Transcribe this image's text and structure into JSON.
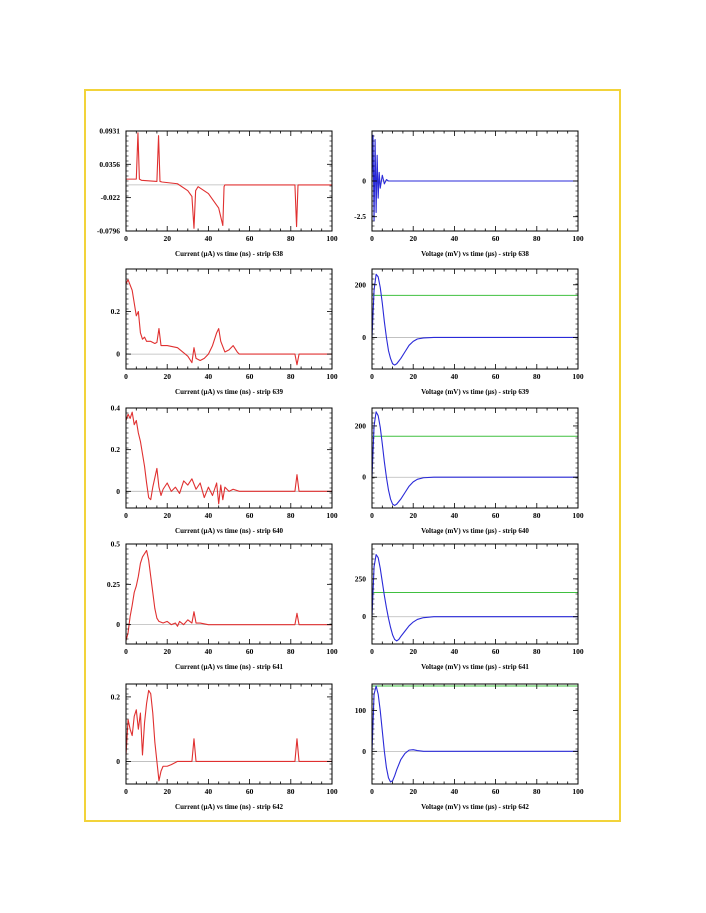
{
  "colors": {
    "frame": "#f2d33a",
    "current": "#e03030",
    "voltage": "#2a2ad8",
    "threshold": "#40c040",
    "baseline": "#b8b8b8"
  },
  "chart_data": [
    {
      "type": "line",
      "xlabel": "Current (µA) vs time (ns) - strip 638",
      "xlim": [
        0,
        100
      ],
      "xticks": [
        0,
        20,
        40,
        60,
        80,
        100
      ],
      "ylim": [
        -0.0796,
        0.0931
      ],
      "yticks": [
        0.0931,
        0.0356,
        -0.022,
        -0.0796
      ],
      "baseline": 0,
      "series": [
        {
          "color": "#e03030",
          "x": [
            0,
            5,
            5.8,
            6.5,
            7.5,
            15,
            15.8,
            16.5,
            17.5,
            25,
            30,
            32,
            33,
            33.8,
            35,
            40,
            45,
            47,
            47.6,
            48,
            60,
            80,
            82,
            82.8,
            83.5,
            84.5,
            100
          ],
          "y": [
            0.01,
            0.01,
            0.09,
            0.01,
            0.008,
            0.006,
            0.085,
            0.006,
            0.005,
            0.002,
            -0.01,
            -0.02,
            -0.075,
            -0.01,
            -0.003,
            -0.015,
            -0.04,
            -0.07,
            -0.003,
            0,
            0,
            0,
            0,
            -0.072,
            0,
            0,
            0
          ]
        }
      ]
    },
    {
      "type": "line",
      "xlabel": "Voltage (mV) vs time (µs) - strip 638",
      "xlim": [
        0,
        100
      ],
      "xticks": [
        0,
        20,
        40,
        60,
        80,
        100
      ],
      "ylim": [
        -3.5,
        3.5
      ],
      "yticks": [
        0,
        -2.5
      ],
      "baseline": 0,
      "series": [
        {
          "color": "#2a2ad8",
          "x": [
            0,
            0.5,
            1,
            1.5,
            2,
            2.5,
            3,
            3.5,
            4,
            5,
            6,
            7,
            8,
            10,
            12,
            100
          ],
          "y": [
            0,
            3.2,
            -2.8,
            2.9,
            -2.2,
            1.8,
            -1.2,
            0.6,
            -0.5,
            0.4,
            -0.2,
            0.1,
            0,
            0,
            0,
            0
          ]
        }
      ]
    },
    {
      "type": "line",
      "xlabel": "Current (µA) vs time (ns) - strip 639",
      "xlim": [
        0,
        100
      ],
      "xticks": [
        0,
        20,
        40,
        60,
        80,
        100
      ],
      "ylim": [
        -0.07,
        0.4
      ],
      "yticks": [
        0.2,
        0
      ],
      "baseline": 0,
      "series": [
        {
          "color": "#e03030",
          "x": [
            0,
            1,
            3,
            4,
            5,
            6,
            7,
            8,
            9,
            10,
            12,
            14,
            15,
            16,
            17,
            20,
            25,
            30,
            32,
            33,
            34,
            36,
            38,
            40,
            42,
            44,
            45,
            46,
            48,
            50,
            52,
            54,
            55,
            60,
            80,
            82,
            83,
            84,
            100
          ],
          "y": [
            0.33,
            0.35,
            0.3,
            0.24,
            0.18,
            0.2,
            0.1,
            0.07,
            0.08,
            0.06,
            0.06,
            0.05,
            0.055,
            0.12,
            0.04,
            0.04,
            0.03,
            -0.01,
            -0.04,
            0.03,
            -0.02,
            -0.03,
            -0.02,
            0,
            0.04,
            0.1,
            0.12,
            0.06,
            0.01,
            0.02,
            0.04,
            0.01,
            0,
            0,
            0,
            0,
            -0.05,
            0,
            0
          ]
        }
      ]
    },
    {
      "type": "line",
      "xlabel": "Voltage (mV) vs time (µs) - strip 639",
      "xlim": [
        0,
        100
      ],
      "xticks": [
        0,
        20,
        40,
        60,
        80,
        100
      ],
      "ylim": [
        -120,
        260
      ],
      "yticks": [
        200,
        0
      ],
      "baseline": 0,
      "threshold": 160,
      "series": [
        {
          "color": "#2a2ad8",
          "x": [
            0,
            1,
            2,
            3,
            4,
            5,
            6,
            7,
            8,
            9,
            10,
            11,
            12,
            14,
            16,
            18,
            20,
            22,
            25,
            30,
            40,
            60,
            80,
            100
          ],
          "y": [
            0,
            180,
            240,
            230,
            190,
            130,
            60,
            0,
            -50,
            -80,
            -100,
            -105,
            -100,
            -80,
            -55,
            -30,
            -15,
            -6,
            -2,
            0,
            0,
            0,
            0,
            0
          ]
        }
      ]
    },
    {
      "type": "line",
      "xlabel": "Current (µA) vs time (ns) - strip 640",
      "xlim": [
        0,
        100
      ],
      "xticks": [
        0,
        20,
        40,
        60,
        80,
        100
      ],
      "ylim": [
        -0.08,
        0.4
      ],
      "yticks": [
        0.4,
        0.2,
        0
      ],
      "baseline": 0,
      "series": [
        {
          "color": "#e03030",
          "x": [
            0,
            1,
            2,
            3,
            4,
            5,
            6,
            7,
            8,
            9,
            10,
            11,
            12,
            13,
            15,
            16,
            17,
            18,
            20,
            22,
            24,
            26,
            28,
            30,
            32,
            34,
            36,
            38,
            40,
            42,
            44,
            45,
            46,
            47,
            48,
            50,
            52,
            55,
            60,
            80,
            82,
            83,
            84,
            100
          ],
          "y": [
            0.34,
            0.37,
            0.35,
            0.38,
            0.32,
            0.34,
            0.28,
            0.24,
            0.18,
            0.12,
            0.04,
            -0.03,
            -0.04,
            0.02,
            0.11,
            0.02,
            -0.02,
            0.01,
            0.04,
            0,
            0.02,
            -0.01,
            0.05,
            0.03,
            0.06,
            0.01,
            0.04,
            -0.03,
            0.02,
            -0.02,
            0.04,
            -0.06,
            0.03,
            -0.04,
            0.02,
            0,
            0.01,
            0,
            0,
            0,
            0,
            0.08,
            0,
            0
          ]
        }
      ]
    },
    {
      "type": "line",
      "xlabel": "Voltage (mV) vs time (µs) - strip 640",
      "xlim": [
        0,
        100
      ],
      "xticks": [
        0,
        20,
        40,
        60,
        80,
        100
      ],
      "ylim": [
        -120,
        270
      ],
      "yticks": [
        200,
        0
      ],
      "baseline": 0,
      "threshold": 160,
      "series": [
        {
          "color": "#2a2ad8",
          "x": [
            0,
            1,
            2,
            3,
            4,
            5,
            6,
            7,
            8,
            9,
            10,
            11,
            12,
            14,
            16,
            18,
            20,
            22,
            25,
            30,
            40,
            60,
            80,
            100
          ],
          "y": [
            0,
            200,
            255,
            240,
            195,
            130,
            60,
            0,
            -50,
            -85,
            -105,
            -110,
            -105,
            -85,
            -60,
            -35,
            -18,
            -8,
            -2,
            0,
            0,
            0,
            0,
            0
          ]
        }
      ]
    },
    {
      "type": "line",
      "xlabel": "Current (µA) vs time (ns) - strip 641",
      "xlim": [
        0,
        100
      ],
      "xticks": [
        0,
        20,
        40,
        60,
        80,
        100
      ],
      "ylim": [
        -0.12,
        0.5
      ],
      "yticks": [
        0.5,
        0.25,
        0
      ],
      "baseline": 0,
      "series": [
        {
          "color": "#e03030",
          "x": [
            0,
            1,
            2,
            3,
            4,
            5,
            6,
            7,
            8,
            9,
            10,
            11,
            12,
            13,
            14,
            15,
            16,
            18,
            20,
            22,
            24,
            25,
            26,
            28,
            30,
            32,
            33,
            34,
            36,
            40,
            60,
            80,
            82,
            83,
            84,
            100
          ],
          "y": [
            -0.1,
            -0.05,
            0.05,
            0.12,
            0.2,
            0.24,
            0.3,
            0.38,
            0.42,
            0.44,
            0.46,
            0.4,
            0.3,
            0.2,
            0.1,
            0.04,
            0.02,
            0.01,
            0.02,
            0,
            0.01,
            -0.01,
            0.02,
            0,
            0.03,
            0.01,
            0.08,
            0.01,
            0.01,
            0,
            0,
            0,
            0,
            0.07,
            0,
            0
          ]
        }
      ]
    },
    {
      "type": "line",
      "xlabel": "Voltage (mV) vs time (µs) - strip 641",
      "xlim": [
        0,
        100
      ],
      "xticks": [
        0,
        20,
        40,
        60,
        80,
        100
      ],
      "ylim": [
        -180,
        480
      ],
      "yticks": [
        250,
        0
      ],
      "baseline": 0,
      "threshold": 160,
      "series": [
        {
          "color": "#2a2ad8",
          "x": [
            0,
            1,
            2,
            3,
            4,
            5,
            6,
            7,
            8,
            9,
            10,
            11,
            12,
            13,
            14,
            16,
            18,
            20,
            22,
            25,
            30,
            40,
            60,
            80,
            100
          ],
          "y": [
            0,
            330,
            410,
            390,
            320,
            230,
            140,
            60,
            -10,
            -70,
            -120,
            -150,
            -160,
            -150,
            -130,
            -95,
            -60,
            -35,
            -18,
            -6,
            0,
            0,
            0,
            0,
            0
          ]
        }
      ]
    },
    {
      "type": "line",
      "xlabel": "Current (µA) vs time (ns) - strip 642",
      "xlim": [
        0,
        100
      ],
      "xticks": [
        0,
        20,
        40,
        60,
        80,
        100
      ],
      "ylim": [
        -0.07,
        0.24
      ],
      "yticks": [
        0.2,
        0
      ],
      "baseline": 0,
      "series": [
        {
          "color": "#e03030",
          "x": [
            0,
            1,
            2,
            3,
            4,
            5,
            6,
            7,
            8,
            9,
            10,
            11,
            12,
            13,
            14,
            15,
            16,
            17,
            18,
            20,
            22,
            25,
            30,
            32,
            33,
            34,
            36,
            40,
            60,
            80,
            82,
            83,
            84,
            100
          ],
          "y": [
            0.02,
            0.13,
            0.1,
            0.08,
            0.14,
            0.16,
            0.1,
            0.15,
            0.02,
            0.12,
            0.18,
            0.22,
            0.21,
            0.15,
            0.06,
            0,
            -0.06,
            -0.03,
            -0.015,
            -0.015,
            -0.01,
            0,
            0,
            0,
            0.07,
            0,
            0,
            0,
            0,
            0,
            0,
            0.07,
            0,
            0
          ]
        }
      ]
    },
    {
      "type": "line",
      "xlabel": "Voltage (mV) vs time (µs) - strip 642",
      "xlim": [
        0,
        100
      ],
      "xticks": [
        0,
        20,
        40,
        60,
        80,
        100
      ],
      "ylim": [
        -80,
        165
      ],
      "yticks": [
        100,
        0
      ],
      "baseline": 0,
      "threshold": 160,
      "series": [
        {
          "color": "#2a2ad8",
          "x": [
            0,
            1,
            2,
            3,
            4,
            5,
            6,
            7,
            8,
            9,
            10,
            11,
            12,
            14,
            16,
            18,
            20,
            22,
            25,
            30,
            40,
            60,
            80,
            100
          ],
          "y": [
            0,
            140,
            160,
            140,
            100,
            50,
            0,
            -40,
            -65,
            -75,
            -72,
            -60,
            -45,
            -20,
            -5,
            3,
            4,
            2,
            0,
            0,
            0,
            0,
            0,
            0
          ]
        }
      ]
    }
  ]
}
